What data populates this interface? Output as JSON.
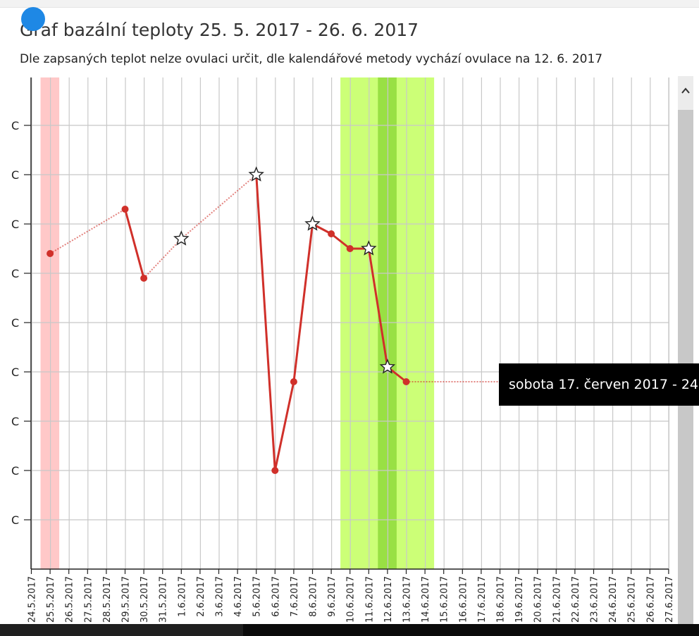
{
  "page": {
    "title": "Graf bazální teploty 25. 5. 2017 - 26. 6. 2017",
    "subtitle": "Dle zapsaných teplot nelze ovulaci určit, dle kalendářové metody vychází ovulace na 12. 6. 2017"
  },
  "tooltip": {
    "text": "sobota 17. červen 2017 - 24"
  },
  "colors": {
    "line": "#d0302a",
    "menstruation": "#ffc8c8",
    "fertile": "#ccff77",
    "fertile_peak": "#99e044",
    "grid": "#c8c8c8",
    "tooltip_bg": "#000000"
  },
  "chart_data": {
    "type": "line",
    "title": "Graf bazální teploty 25. 5. 2017 - 26. 6. 2017",
    "xlabel": "",
    "ylabel": "",
    "x_tick_labels": [
      "24.5.2017",
      "25.5.2017",
      "26.5.2017",
      "27.5.2017",
      "28.5.2017",
      "29.5.2017",
      "30.5.2017",
      "31.5.2017",
      "1.6.2017",
      "2.6.2017",
      "3.6.2017",
      "4.6.2017",
      "5.6.2017",
      "6.6.2017",
      "7.6.2017",
      "8.6.2017",
      "9.6.2017",
      "10.6.2017",
      "11.6.2017",
      "12.6.2017",
      "13.6.2017",
      "14.6.2017",
      "15.6.2017",
      "16.6.2017",
      "17.6.2017",
      "18.6.2017",
      "19.6.2017",
      "20.6.2017",
      "21.6.2017",
      "22.6.2017",
      "23.6.2017",
      "24.6.2017",
      "25.6.2017",
      "26.6.2017",
      "27.6.2017"
    ],
    "y_tick_labels": [
      "C",
      "C",
      "C",
      "C",
      "C",
      "C",
      "C",
      "C",
      "C"
    ],
    "y_levels": 10,
    "points": [
      {
        "x": "25.5.2017",
        "y": 6.4,
        "marker": "dot"
      },
      {
        "x": "29.5.2017",
        "y": 7.3,
        "marker": "dot"
      },
      {
        "x": "30.5.2017",
        "y": 5.9,
        "marker": "dot"
      },
      {
        "x": "1.6.2017",
        "y": 6.7,
        "marker": "star"
      },
      {
        "x": "5.6.2017",
        "y": 8.0,
        "marker": "star"
      },
      {
        "x": "6.6.2017",
        "y": 2.0,
        "marker": "dot"
      },
      {
        "x": "7.6.2017",
        "y": 3.8,
        "marker": "dot"
      },
      {
        "x": "8.6.2017",
        "y": 7.0,
        "marker": "star"
      },
      {
        "x": "9.6.2017",
        "y": 6.8,
        "marker": "dot"
      },
      {
        "x": "10.6.2017",
        "y": 6.5,
        "marker": "dot"
      },
      {
        "x": "11.6.2017",
        "y": 6.5,
        "marker": "star"
      },
      {
        "x": "12.6.2017",
        "y": 4.1,
        "marker": "star"
      },
      {
        "x": "13.6.2017",
        "y": 3.8,
        "marker": "dot"
      }
    ],
    "dotted_connections": [
      [
        0,
        1
      ],
      [
        2,
        3
      ],
      [
        3,
        4
      ]
    ],
    "dotted_extension": {
      "from": "13.6.2017",
      "to": "18.6.2017"
    },
    "bands": [
      {
        "from": "24.5.2017",
        "to": "25.5.2017",
        "kind": "menstruation"
      },
      {
        "from": "9.6.2017",
        "to": "14.6.2017",
        "kind": "fertile"
      },
      {
        "from": "11.6.2017",
        "to": "12.6.2017",
        "kind": "fertile_peak"
      }
    ],
    "grid": true
  }
}
